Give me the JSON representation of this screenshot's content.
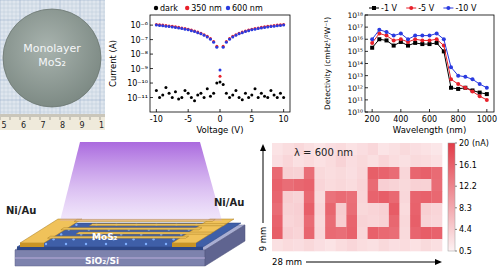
{
  "photo": {
    "label": [
      "Monolayer",
      "MoS₂"
    ],
    "ruler_labels": [
      "5",
      "6",
      "7",
      "8",
      "9",
      "1"
    ]
  },
  "schematic": {
    "electrode_left": "Ni/Au",
    "electrode_right": "Ni/Au",
    "layer": "MoS₂",
    "substrate": "SiO₂/Si"
  },
  "chart_data": [
    {
      "type": "scatter",
      "xlabel": "Voltage (V)",
      "ylabel": "Current (A)",
      "log": "y",
      "legend": "top",
      "grid": false,
      "x": [
        -10,
        -9.5,
        -9,
        -8.5,
        -8,
        -7.5,
        -7,
        -6.5,
        -6,
        -5.5,
        -5,
        -4.5,
        -4,
        -3.5,
        -3,
        -2.5,
        -2,
        -1.5,
        -1,
        -0.5,
        0,
        0.5,
        1,
        1.5,
        2,
        2.5,
        3,
        3.5,
        4,
        4.5,
        5,
        5.5,
        6,
        6.5,
        7,
        7.5,
        8,
        8.5,
        9,
        9.5,
        10
      ],
      "xlim": [
        -11,
        11
      ],
      "xticks": [
        -10,
        -5,
        0,
        5,
        10
      ],
      "ylim": [
        1e-12,
        5e-06
      ],
      "yticks": [
        {
          "value": 1e-11,
          "label": "10⁻¹¹"
        },
        {
          "value": 1e-10,
          "label": "10⁻¹⁰"
        },
        {
          "value": 1e-09,
          "label": "10⁻⁹"
        },
        {
          "value": 1e-08,
          "label": "10⁻⁸"
        },
        {
          "value": 1e-07,
          "label": "10⁻⁷"
        },
        {
          "value": 1e-06,
          "label": "10⁻⁶"
        }
      ],
      "series": [
        {
          "name": "dark",
          "color": "#000000",
          "marker": "circle",
          "values": [
            3e-11,
            1e-11,
            1.5e-11,
            5e-11,
            2e-11,
            1e-11,
            2.5e-11,
            8e-12,
            1e-11,
            3e-11,
            2e-11,
            1e-11,
            6e-12,
            1.5e-11,
            2e-11,
            1e-11,
            4e-11,
            1.2e-11,
            2e-11,
            1e-10,
            1.2e-10,
            8e-11,
            2e-11,
            1e-11,
            1.5e-11,
            3e-11,
            1e-11,
            7e-12,
            2e-11,
            1e-11,
            1.5e-11,
            4e-11,
            1e-11,
            2e-11,
            1.2e-11,
            1e-11,
            3e-11,
            1.5e-11,
            1e-11,
            2e-11,
            1e-11
          ]
        },
        {
          "name": "350 nm",
          "color": "#e8202a",
          "marker": "circle",
          "values": [
            1.1e-06,
            1.05e-06,
            1e-06,
            9.4e-07,
            8.8e-07,
            8.2e-07,
            7.6e-07,
            7e-07,
            6.4e-07,
            5.8e-07,
            5.2e-07,
            4.6e-07,
            4e-07,
            3.4e-07,
            2.8e-07,
            2.2e-07,
            1.7e-07,
            1.2e-07,
            7.5e-08,
            3.5e-08,
            3e-10,
            3.5e-08,
            7.5e-08,
            1.2e-07,
            1.7e-07,
            2.2e-07,
            2.8e-07,
            3.4e-07,
            4e-07,
            4.6e-07,
            5.2e-07,
            5.8e-07,
            6.4e-07,
            7e-07,
            7.6e-07,
            8.2e-07,
            8.8e-07,
            9.4e-07,
            1e-06,
            1.05e-06,
            1.1e-06
          ]
        },
        {
          "name": "600 nm",
          "color": "#2a3be0",
          "marker": "circle",
          "values": [
            1e-06,
            9.5e-07,
            9e-07,
            8.5e-07,
            8e-07,
            7.4e-07,
            6.9e-07,
            6.3e-07,
            5.8e-07,
            5.2e-07,
            4.7e-07,
            4.1e-07,
            3.6e-07,
            3e-07,
            2.5e-07,
            2e-07,
            1.5e-07,
            1.05e-07,
            6.5e-08,
            3e-08,
            8e-10,
            3e-08,
            6.5e-08,
            1.05e-07,
            1.5e-07,
            2e-07,
            2.5e-07,
            3e-07,
            3.6e-07,
            4.1e-07,
            4.7e-07,
            5.2e-07,
            5.8e-07,
            6.3e-07,
            6.9e-07,
            7.4e-07,
            8e-07,
            8.5e-07,
            9e-07,
            9.5e-07,
            1e-06
          ]
        }
      ]
    },
    {
      "type": "line",
      "xlabel": "Wavelength (nm)",
      "ylabel": "Detectivity (cmHz¹/²W⁻¹)",
      "log": "y",
      "legend": "top",
      "grid": false,
      "x": [
        200,
        250,
        300,
        350,
        400,
        450,
        500,
        550,
        600,
        650,
        700,
        750,
        800,
        850,
        900,
        950,
        1000
      ],
      "xlim": [
        150,
        1050
      ],
      "xticks": [
        200,
        400,
        600,
        800,
        1000
      ],
      "ylim": [
        10000000000.0,
        1e+18
      ],
      "yticks": [
        {
          "value": 10000000000.0,
          "label": "10¹⁰"
        },
        {
          "value": 100000000000.0,
          "label": "10¹¹"
        },
        {
          "value": 1000000000000.0,
          "label": "10¹²"
        },
        {
          "value": 10000000000000.0,
          "label": "10¹³"
        },
        {
          "value": 100000000000000.0,
          "label": "10¹⁴"
        },
        {
          "value": 1000000000000000.0,
          "label": "10¹⁵"
        },
        {
          "value": 1e+16,
          "label": "10¹⁶"
        },
        {
          "value": 1e+17,
          "label": "10¹⁷"
        },
        {
          "value": 1e+18,
          "label": "10¹⁸"
        }
      ],
      "series": [
        {
          "name": "-1 V",
          "color": "#000000",
          "marker": "square",
          "line_style": "solid",
          "values": [
            2000000000000000.0,
            1e+16,
            8000000000000000.0,
            3000000000000000.0,
            6000000000000000.0,
            3000000000000000.0,
            5000000000000000.0,
            4000000000000000.0,
            4000000000000000.0,
            5000000000000000.0,
            1000000000000000.0,
            1000000000000.0,
            800000000000.0,
            1000000000000.0,
            600000000000.0,
            400000000000.0,
            300000000000.0
          ]
        },
        {
          "name": "-5 V",
          "color": "#e8202a",
          "marker": "circle",
          "line_style": "solid",
          "values": [
            5000000000000000.0,
            3e+16,
            2e+16,
            8000000000000000.0,
            1e+16,
            6000000000000000.0,
            1e+16,
            8000000000000000.0,
            8000000000000000.0,
            1e+16,
            3000000000000000.0,
            5000000000000.0,
            2000000000000.0,
            1000000000000.0,
            500000000000.0,
            200000000000.0,
            100000000000.0
          ]
        },
        {
          "name": "-10 V",
          "color": "#2a3be0",
          "marker": "circle",
          "line_style": "solid",
          "values": [
            1e+16,
            6e+16,
            4e+16,
            2e+16,
            3e+16,
            1e+16,
            2e+16,
            2e+16,
            2e+16,
            3e+16,
            1e+16,
            50000000000000.0,
            10000000000000.0,
            8000000000000.0,
            5000000000000.0,
            2000000000000.0,
            1000000000000.0
          ]
        }
      ]
    },
    {
      "type": "heatmap",
      "title": "λ = 600 nm",
      "xlabel": "28 mm",
      "ylabel": "9 mm",
      "cells": [
        [
          2.1,
          2.8,
          3.3,
          2.5,
          1.9,
          2.6,
          3.0,
          2.2,
          2.7,
          3.4,
          2.0,
          2.4,
          3.1,
          2.6,
          2.2,
          1.8
        ],
        [
          2.6,
          3.5,
          2.4,
          3.0,
          2.3,
          2.9,
          3.8,
          2.7,
          3.2,
          2.5,
          3.6,
          2.8,
          2.4,
          3.1,
          2.9,
          2.3
        ],
        [
          15.2,
          4.1,
          3.9,
          14.6,
          3.2,
          2.8,
          3.1,
          2.6,
          3.4,
          16.3,
          15.8,
          14.9,
          3.5,
          15.5,
          16.1,
          15.0
        ],
        [
          16.0,
          14.8,
          15.4,
          15.9,
          3.6,
          3.0,
          3.3,
          2.9,
          3.7,
          15.1,
          4.2,
          3.8,
          3.2,
          4.0,
          3.9,
          14.7
        ],
        [
          15.6,
          4.4,
          3.8,
          15.3,
          3.1,
          14.2,
          15.0,
          14.5,
          3.6,
          15.8,
          16.4,
          15.2,
          3.4,
          15.7,
          16.0,
          15.3
        ],
        [
          14.9,
          3.9,
          4.2,
          16.2,
          3.5,
          15.5,
          4.6,
          14.8,
          3.3,
          3.7,
          4.1,
          16.6,
          3.0,
          15.9,
          4.3,
          3.6
        ],
        [
          15.8,
          3.6,
          4.0,
          15.0,
          3.2,
          14.9,
          4.4,
          15.7,
          3.8,
          3.5,
          3.9,
          15.4,
          3.3,
          16.2,
          3.8,
          3.4
        ],
        [
          16.3,
          4.2,
          3.7,
          15.5,
          3.4,
          15.1,
          14.6,
          15.9,
          3.5,
          16.0,
          15.2,
          14.8,
          3.1,
          15.6,
          16.5,
          15.9
        ],
        [
          2.4,
          3.0,
          2.7,
          3.3,
          2.6,
          2.1,
          2.9,
          3.5,
          2.8,
          2.4,
          3.2,
          2.6,
          2.9,
          2.3,
          3.1,
          2.5
        ]
      ],
      "colorbar_lim": [
        0.5,
        20
      ],
      "colorbar_ticks": [
        0.5,
        4.4,
        8.3,
        12.2,
        16.1,
        20
      ],
      "colorbar_label": "(nA)"
    }
  ]
}
